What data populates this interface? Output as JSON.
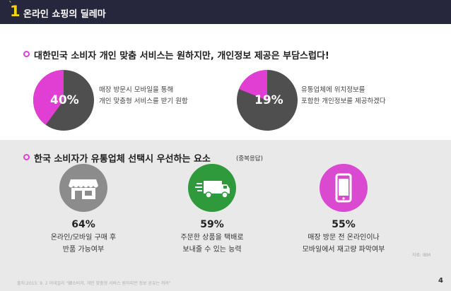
{
  "header": {
    "number": "1",
    "title": "온라인 쇼핑의 딜레마"
  },
  "section1": {
    "heading": "대한민국 소비자 개인 맞춤 서비스는 원하지만, 개인정보 제공은 부담스럽다!",
    "pies": [
      {
        "value": 40,
        "label": "40%",
        "lines": [
          "매장 방문시 모바일을 통해",
          "개인 맞춤형 서비스를 받기 원함"
        ]
      },
      {
        "value": 19,
        "label": "19%",
        "lines": [
          "유통업체에 위치정보를",
          "포함한 개인정보를 제공하겠다"
        ]
      }
    ]
  },
  "section2": {
    "heading": "한국 소비자가 유통업체 선택시 우선하는 요소",
    "note": "(중복응답)",
    "items": [
      {
        "icon": "store-icon",
        "percent": "64%",
        "lines": [
          "온라인/모바일 구매 후",
          "반품 가능여부"
        ]
      },
      {
        "icon": "delivery-truck-icon",
        "percent": "59%",
        "lines": [
          "주문한 상품을 택배로",
          "보내줄 수 있는 능력"
        ]
      },
      {
        "icon": "smartphone-icon",
        "percent": "55%",
        "lines": [
          "매장 방문 전 온라인이나",
          "모바일에서 재고량 파악여부"
        ]
      }
    ],
    "small_note": "자료: IBM"
  },
  "footer": {
    "source": "출처:2015. 9. 2 이데일리 \"韓소비자, 개인 맞춤형 서비스 원하지만 정보 공유는 꺼려\"",
    "page": "4"
  },
  "colors": {
    "header_bg": "#26273d",
    "accent_yellow": "#f5d410",
    "accent_magenta": "#e13fd3",
    "pie_dark": "#4f4f4f",
    "icon_gray": "#8c8c8c",
    "icon_green": "#2e9a3c",
    "icon_magenta": "#d94ad0",
    "band_gray": "#e9e9e9"
  }
}
